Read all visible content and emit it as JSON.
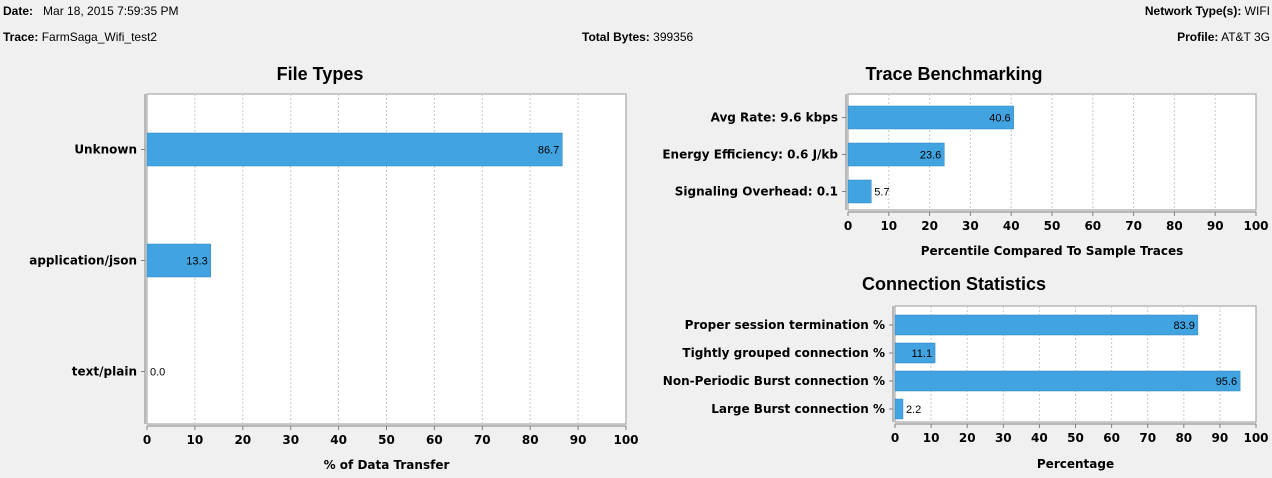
{
  "header": {
    "date_label": "Date:",
    "date_value": "Mar 18, 2015 7:59:35 PM",
    "trace_label": "Trace:",
    "trace_value": "FarmSaga_Wifi_test2",
    "total_bytes_label": "Total Bytes:",
    "total_bytes_value": "399356",
    "network_label": "Network Type(s):",
    "network_value": "WIFI",
    "profile_label": "Profile:",
    "profile_value": "AT&T 3G"
  },
  "colors": {
    "bar": "#41a3e0",
    "bar_edge": "#2f86bd",
    "grid": "#c8c8c8"
  },
  "chart_data": [
    {
      "id": "file-types",
      "type": "bar",
      "orientation": "horizontal",
      "title": "File Types",
      "categories": [
        "Unknown",
        "application/json",
        "text/plain"
      ],
      "values": [
        86.7,
        13.3,
        0.0
      ],
      "labels": [
        "86.7",
        "13.3",
        "0.0"
      ],
      "xlabel": "% of Data Transfer",
      "xlim": [
        0,
        100
      ],
      "ticks": [
        0,
        10,
        20,
        30,
        40,
        50,
        60,
        70,
        80,
        90,
        100
      ],
      "grid": true
    },
    {
      "id": "trace-benchmarking",
      "type": "bar",
      "orientation": "horizontal",
      "title": "Trace Benchmarking",
      "categories": [
        "Avg Rate: 9.6 kbps",
        "Energy Efficiency: 0.6 J/kb",
        "Signaling Overhead: 0.1"
      ],
      "values": [
        40.6,
        23.6,
        5.7
      ],
      "labels": [
        "40.6",
        "23.6",
        "5.7"
      ],
      "xlabel": "Percentile Compared To Sample Traces",
      "xlim": [
        0,
        100
      ],
      "ticks": [
        0,
        10,
        20,
        30,
        40,
        50,
        60,
        70,
        80,
        90,
        100
      ],
      "grid": true
    },
    {
      "id": "connection-statistics",
      "type": "bar",
      "orientation": "horizontal",
      "title": "Connection Statistics",
      "categories": [
        "Proper session termination %",
        "Tightly grouped connection %",
        "Non-Periodic Burst connection %",
        "Large Burst connection %"
      ],
      "values": [
        83.9,
        11.1,
        95.6,
        2.2
      ],
      "labels": [
        "83.9",
        "11.1",
        "95.6",
        "2.2"
      ],
      "xlabel": "Percentage",
      "xlim": [
        0,
        100
      ],
      "ticks": [
        0,
        10,
        20,
        30,
        40,
        50,
        60,
        70,
        80,
        90,
        100
      ],
      "grid": true
    }
  ]
}
